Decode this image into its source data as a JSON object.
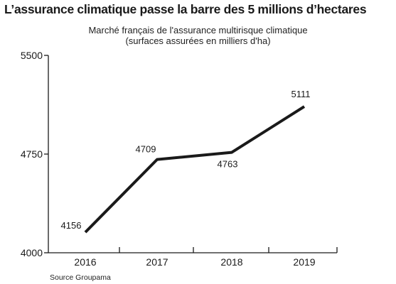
{
  "title": "L’assurance climatique passe la barre des 5 millions d’hectares",
  "subtitle_line1": "Marché français de l'assurance multirisque climatique",
  "subtitle_line2": "(surfaces assurées en milliers d'ha)",
  "source": "Source Groupama",
  "chart_data": {
    "type": "line",
    "categories": [
      "2016",
      "2017",
      "2018",
      "2019"
    ],
    "values": [
      4156,
      4709,
      4763,
      5111
    ],
    "data_labels": [
      "4156",
      "4709",
      "4763",
      "5111"
    ],
    "ylim": [
      4000,
      5500
    ],
    "yticks": [
      4000,
      4750,
      5500
    ],
    "ytick_labels": [
      "4000",
      "4750",
      "5500"
    ],
    "grid": false,
    "line_color": "#1a1a1a"
  }
}
